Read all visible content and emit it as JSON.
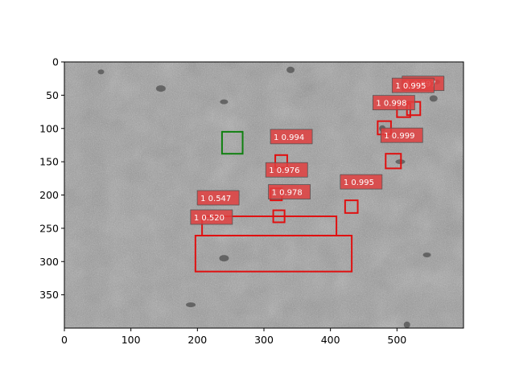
{
  "chart_data": {
    "type": "image-annotation",
    "title": "",
    "xlabel": "",
    "ylabel": "",
    "xlim": [
      0,
      600
    ],
    "ylim": [
      400,
      0
    ],
    "x_ticks": [
      0,
      100,
      200,
      300,
      400,
      500
    ],
    "y_ticks": [
      0,
      50,
      100,
      150,
      200,
      250,
      300,
      350
    ],
    "colors": {
      "prediction": "#e01010",
      "ground_truth": "#108010",
      "label_bg": "#e04040"
    },
    "image": {
      "description_type": "grayscale lunar surface with craters",
      "width": 600,
      "height": 400
    },
    "detections": [
      {
        "label": "1 0.997",
        "x1": 515,
        "y1": 60,
        "x2": 535,
        "y2": 80
      },
      {
        "label": "1 0.995",
        "x1": 500,
        "y1": 63,
        "x2": 520,
        "y2": 83
      },
      {
        "label": "1 0.998",
        "x1": 471,
        "y1": 89,
        "x2": 491,
        "y2": 109
      },
      {
        "label": "1 0.999",
        "x1": 483,
        "y1": 138,
        "x2": 506,
        "y2": 160
      },
      {
        "label": "1 0.994",
        "x1": 317,
        "y1": 140,
        "x2": 335,
        "y2": 159
      },
      {
        "label": "1 0.976",
        "x1": 310,
        "y1": 190,
        "x2": 327,
        "y2": 208
      },
      {
        "label": "1 0.995",
        "x1": 422,
        "y1": 208,
        "x2": 441,
        "y2": 227
      },
      {
        "label": "1 0.978",
        "x1": 314,
        "y1": 223,
        "x2": 331,
        "y2": 241
      },
      {
        "label": "1 0.547",
        "x1": 207,
        "y1": 232,
        "x2": 409,
        "y2": 261
      },
      {
        "label": "1 0.520",
        "x1": 197,
        "y1": 261,
        "x2": 432,
        "y2": 315
      }
    ],
    "ground_truth": [
      {
        "x1": 237,
        "y1": 105,
        "x2": 268,
        "y2": 138
      }
    ]
  }
}
